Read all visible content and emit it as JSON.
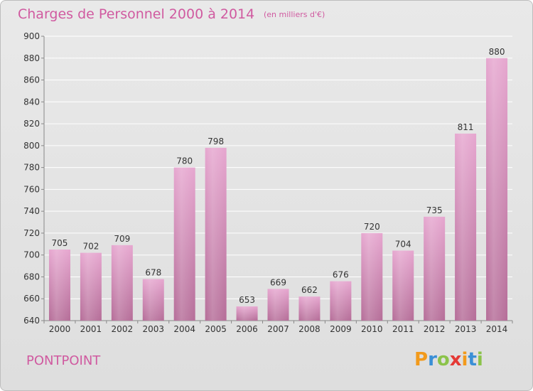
{
  "header": {
    "title": "Charges de Personnel 2000 à 2014",
    "subtitle": "(en milliers d'€)"
  },
  "footer": {
    "commune": "PONTPOINT",
    "logo_text": "Proxiti",
    "logo_letters": [
      "P",
      "r",
      "o",
      "x",
      "i",
      "t",
      "i"
    ],
    "logo_colors": [
      "#f29a1c",
      "#3a8fd6",
      "#8bc34a",
      "#e53935",
      "#f29a1c",
      "#3a8fd6",
      "#8bc34a"
    ]
  },
  "colors": {
    "bar_top": "#e6a6cf",
    "bar_bottom": "#b56d98",
    "accent": "#d05aa0"
  },
  "chart_data": {
    "type": "bar",
    "title": "Charges de Personnel 2000 à 2014",
    "categories": [
      "2000",
      "2001",
      "2002",
      "2003",
      "2004",
      "2005",
      "2006",
      "2007",
      "2008",
      "2009",
      "2010",
      "2011",
      "2012",
      "2013",
      "2014"
    ],
    "values": [
      705,
      702,
      709,
      678,
      780,
      798,
      653,
      669,
      662,
      676,
      720,
      704,
      735,
      811,
      880
    ],
    "ylim": [
      640,
      900
    ],
    "yticks": [
      640,
      660,
      680,
      700,
      720,
      740,
      760,
      780,
      800,
      820,
      840,
      860,
      880,
      900
    ],
    "grid": true,
    "xlabel": "",
    "ylabel": ""
  }
}
